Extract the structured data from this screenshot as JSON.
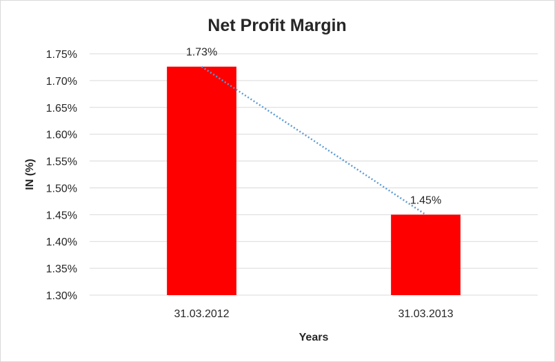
{
  "chart_data": {
    "type": "bar",
    "title": "Net Profit Margin",
    "xlabel": "Years",
    "ylabel": "IN (%)",
    "categories": [
      "31.03.2012",
      "31.03.2013"
    ],
    "values": [
      1.726,
      1.45
    ],
    "data_labels": [
      "1.73%",
      "1.45%"
    ],
    "ylim": [
      1.3,
      1.75
    ],
    "yticks": [
      1.3,
      1.35,
      1.4,
      1.45,
      1.5,
      1.55,
      1.6,
      1.65,
      1.7,
      1.75
    ],
    "ytick_labels": [
      "1.30%",
      "1.35%",
      "1.40%",
      "1.45%",
      "1.50%",
      "1.55%",
      "1.60%",
      "1.65%",
      "1.70%",
      "1.75%"
    ],
    "grid": true,
    "trendline": "linear",
    "colors": {
      "bar": "#ff0000",
      "trendline": "#5b9bd5"
    }
  }
}
